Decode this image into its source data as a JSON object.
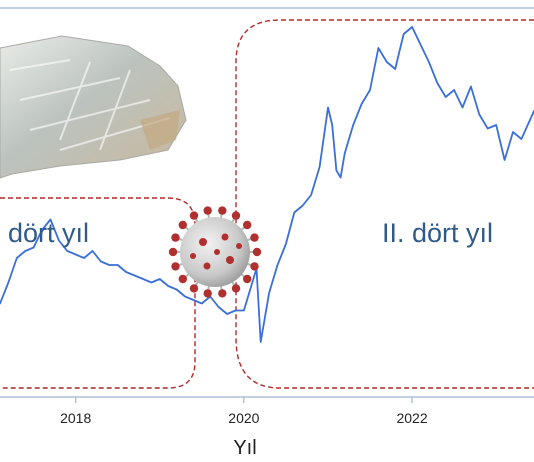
{
  "chart_data": {
    "type": "line",
    "title": "",
    "xlabel": "Yıl",
    "ylabel": "",
    "xlim": [
      2017.1,
      2023.45
    ],
    "ylim": [
      0,
      100
    ],
    "x_ticks": [
      "2018",
      "2020",
      "2022"
    ],
    "grid": false,
    "legend": "none",
    "annotations": {
      "period_1": "dört yıl",
      "period_2": "II. dört yıl"
    },
    "colors": {
      "line": "#3a6fd8",
      "dashed_box": "#b22a2a",
      "axis": "#9db5cf",
      "annotation_text": "#2f5a8a"
    },
    "icons": [
      "crystal-image",
      "coronavirus-icon"
    ],
    "series": [
      {
        "x": [
          2017.1,
          2017.2,
          2017.3,
          2017.4,
          2017.5,
          2017.6,
          2017.7,
          2017.8,
          2017.9,
          2018.0,
          2018.1,
          2018.2,
          2018.3,
          2018.4,
          2018.5,
          2018.6,
          2018.7,
          2018.8,
          2018.9,
          2019.0,
          2019.1,
          2019.2,
          2019.3,
          2019.4,
          2019.5,
          2019.6,
          2019.7,
          2019.8,
          2019.9,
          2020.0,
          2020.05,
          2020.1,
          2020.15,
          2020.2,
          2020.3,
          2020.4,
          2020.5,
          2020.6,
          2020.7,
          2020.8,
          2020.9,
          2021.0,
          2021.05,
          2021.1,
          2021.15,
          2021.2,
          2021.3,
          2021.4,
          2021.5,
          2021.6,
          2021.7,
          2021.8,
          2021.85,
          2021.9,
          2022.0,
          2022.1,
          2022.2,
          2022.3,
          2022.4,
          2022.5,
          2022.6,
          2022.7,
          2022.8,
          2022.9,
          2023.0,
          2023.05,
          2023.1,
          2023.2,
          2023.3,
          2023.45
        ],
        "values": [
          19,
          25,
          32,
          34,
          35,
          40,
          43,
          37,
          34,
          33,
          32,
          34,
          31,
          30,
          30,
          28,
          27,
          26,
          25,
          26,
          24,
          23,
          21,
          20,
          19,
          21,
          18,
          16,
          17,
          17,
          21,
          25,
          29,
          8,
          22,
          30,
          36,
          45,
          47,
          50,
          58,
          75,
          70,
          57,
          55,
          62,
          70,
          76,
          80,
          92,
          88,
          86,
          91,
          96,
          98,
          93,
          88,
          82,
          78,
          80,
          75,
          81,
          73,
          69,
          70,
          65,
          60,
          68,
          66,
          74
        ]
      }
    ]
  }
}
